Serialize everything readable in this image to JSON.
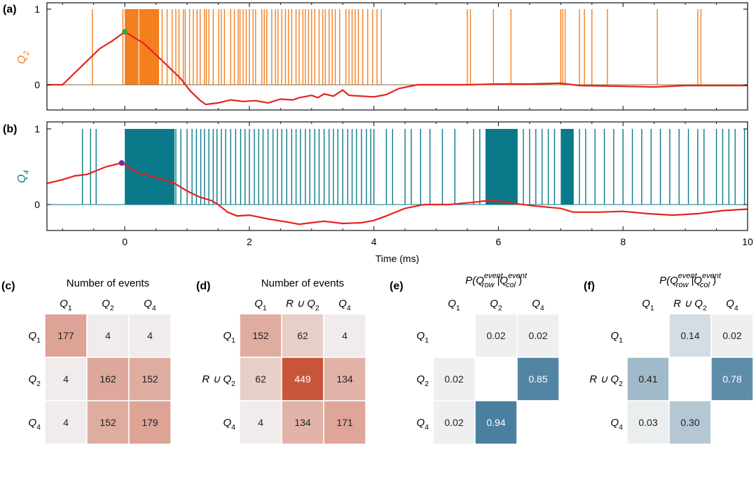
{
  "colors": {
    "q2": "#f47f1f",
    "q4": "#0a7a8a",
    "red": "#e4231f",
    "green": "#3aa33a",
    "purple": "#7a2a96",
    "warm_low": "#f1f1f1",
    "warm_high": "#c9553a",
    "cool_low": "#f3f3f3",
    "cool_high": "#4a7fa0"
  },
  "panel_a": {
    "label": "(a)",
    "ylabel": "Q",
    "ylabel_sub": "2",
    "yticks": [
      "1",
      "0"
    ],
    "ytick_values": [
      1,
      0
    ],
    "marker_point": {
      "t": 0.0,
      "y": 0.7
    },
    "trace": [
      [
        -1.25,
        0
      ],
      [
        -1.0,
        0.0
      ],
      [
        -0.85,
        0.12
      ],
      [
        -0.6,
        0.32
      ],
      [
        -0.4,
        0.48
      ],
      [
        -0.2,
        0.58
      ],
      [
        0.0,
        0.7
      ],
      [
        0.3,
        0.55
      ],
      [
        0.6,
        0.32
      ],
      [
        0.9,
        0.08
      ],
      [
        1.05,
        -0.08
      ],
      [
        1.2,
        -0.2
      ],
      [
        1.3,
        -0.26
      ],
      [
        1.5,
        -0.24
      ],
      [
        1.7,
        -0.2
      ],
      [
        1.9,
        -0.22
      ],
      [
        2.1,
        -0.21
      ],
      [
        2.3,
        -0.24
      ],
      [
        2.5,
        -0.19
      ],
      [
        2.7,
        -0.2
      ],
      [
        2.8,
        -0.17
      ],
      [
        3.0,
        -0.14
      ],
      [
        3.1,
        -0.17
      ],
      [
        3.2,
        -0.12
      ],
      [
        3.35,
        -0.15
      ],
      [
        3.5,
        -0.07
      ],
      [
        3.6,
        -0.14
      ],
      [
        3.8,
        -0.15
      ],
      [
        4.0,
        -0.16
      ],
      [
        4.2,
        -0.13
      ],
      [
        4.4,
        -0.05
      ],
      [
        4.7,
        0.0
      ],
      [
        5.0,
        0.0
      ],
      [
        5.5,
        0.0
      ],
      [
        6.0,
        0.01
      ],
      [
        6.5,
        0.01
      ],
      [
        7.0,
        0.02
      ],
      [
        7.3,
        -0.01
      ],
      [
        8.0,
        -0.02
      ],
      [
        8.5,
        -0.03
      ],
      [
        9.0,
        -0.01
      ],
      [
        9.5,
        -0.01
      ],
      [
        10.0,
        -0.01
      ]
    ],
    "spike_times": [
      -0.52,
      -0.03,
      0.24,
      0.33,
      0.4,
      0.52,
      0.6,
      0.68,
      0.76,
      0.82,
      0.87,
      0.94,
      0.97,
      1.04,
      1.1,
      1.16,
      1.21,
      1.28,
      1.31,
      1.35,
      1.42,
      1.51,
      1.55,
      1.6,
      1.7,
      1.76,
      1.82,
      1.85,
      1.9,
      1.95,
      2.0,
      2.06,
      2.1,
      2.2,
      2.24,
      2.28,
      2.36,
      2.42,
      2.46,
      2.52,
      2.58,
      2.63,
      2.68,
      2.75,
      2.8,
      2.86,
      2.9,
      2.95,
      3.0,
      3.05,
      3.12,
      3.18,
      3.22,
      3.28,
      3.33,
      3.38,
      3.45,
      3.55,
      3.6,
      3.65,
      3.7,
      3.75,
      3.82,
      3.9,
      3.98,
      4.05,
      4.12,
      5.5,
      5.55,
      5.92,
      6.2,
      7.0,
      7.03,
      7.07,
      7.3,
      7.38,
      7.5,
      7.75,
      8.55,
      9.2,
      9.25
    ],
    "dense_ranges": [
      [
        0.0,
        0.22
      ],
      [
        0.24,
        0.55
      ]
    ]
  },
  "panel_b": {
    "label": "(b)",
    "ylabel": "Q",
    "ylabel_sub": "4",
    "yticks": [
      "1",
      "0"
    ],
    "ytick_values": [
      1,
      0
    ],
    "marker_point": {
      "t": -0.05,
      "y": 0.55
    },
    "trace": [
      [
        -1.25,
        0.28
      ],
      [
        -1.0,
        0.33
      ],
      [
        -0.8,
        0.38
      ],
      [
        -0.6,
        0.4
      ],
      [
        -0.45,
        0.45
      ],
      [
        -0.3,
        0.5
      ],
      [
        -0.05,
        0.55
      ],
      [
        0.2,
        0.42
      ],
      [
        0.5,
        0.36
      ],
      [
        0.8,
        0.28
      ],
      [
        1.0,
        0.18
      ],
      [
        1.2,
        0.1
      ],
      [
        1.4,
        0.05
      ],
      [
        1.5,
        0.0
      ],
      [
        1.65,
        -0.1
      ],
      [
        1.8,
        -0.15
      ],
      [
        2.0,
        -0.14
      ],
      [
        2.3,
        -0.19
      ],
      [
        2.6,
        -0.23
      ],
      [
        2.8,
        -0.26
      ],
      [
        3.0,
        -0.24
      ],
      [
        3.2,
        -0.22
      ],
      [
        3.5,
        -0.25
      ],
      [
        3.8,
        -0.24
      ],
      [
        4.0,
        -0.21
      ],
      [
        4.2,
        -0.15
      ],
      [
        4.5,
        -0.05
      ],
      [
        4.8,
        0.0
      ],
      [
        5.2,
        0.0
      ],
      [
        5.6,
        0.03
      ],
      [
        5.9,
        0.06
      ],
      [
        6.2,
        0.02
      ],
      [
        6.6,
        -0.02
      ],
      [
        7.0,
        -0.05
      ],
      [
        7.2,
        -0.1
      ],
      [
        7.6,
        -0.1
      ],
      [
        8.0,
        -0.09
      ],
      [
        8.4,
        -0.12
      ],
      [
        8.8,
        -0.14
      ],
      [
        9.2,
        -0.12
      ],
      [
        9.6,
        -0.08
      ],
      [
        10.0,
        -0.06
      ]
    ],
    "spike_times": [
      -0.68,
      -0.55,
      -0.46,
      0.82,
      0.9,
      1.0,
      1.08,
      1.15,
      1.22,
      1.28,
      1.35,
      1.42,
      1.48,
      1.55,
      1.62,
      1.7,
      1.78,
      1.86,
      1.93,
      2.0,
      2.08,
      2.15,
      2.22,
      2.3,
      2.38,
      2.45,
      2.52,
      2.6,
      2.68,
      2.75,
      2.82,
      2.9,
      2.97,
      3.05,
      3.12,
      3.2,
      3.28,
      3.35,
      3.42,
      3.5,
      3.58,
      3.65,
      3.72,
      3.8,
      3.88,
      3.95,
      4.0,
      4.2,
      4.3,
      4.5,
      4.6,
      4.75,
      4.9,
      5.1,
      5.3,
      5.6,
      5.7,
      5.8,
      5.9,
      6.0,
      6.1,
      6.2,
      6.3,
      6.4,
      6.5,
      6.6,
      6.7,
      6.8,
      6.9,
      7.05,
      7.1,
      7.2,
      7.3,
      7.4,
      7.55,
      7.7,
      7.85,
      8.0,
      8.15,
      8.3,
      8.45,
      8.6,
      8.75,
      8.9,
      9.05,
      9.2,
      9.3,
      9.5,
      9.6,
      9.7,
      9.8,
      9.95
    ],
    "dense_ranges": [
      [
        0.0,
        0.8
      ],
      [
        5.8,
        6.3
      ],
      [
        7.0,
        7.2
      ]
    ]
  },
  "time_axis": {
    "label": "Time (ms)",
    "ticks": [
      0,
      2,
      4,
      6,
      8,
      10
    ],
    "tick_labels": [
      "0",
      "2",
      "4",
      "6",
      "8",
      "10"
    ],
    "xmin": -1.25,
    "xmax": 10
  },
  "matrix_c": {
    "label": "(c)",
    "title": "Number of events",
    "cols": [
      [
        "Q",
        "1",
        ""
      ],
      [
        "Q",
        "2",
        ""
      ],
      [
        "Q",
        "4",
        ""
      ]
    ],
    "rows": [
      [
        "Q",
        "1",
        ""
      ],
      [
        "Q",
        "2",
        ""
      ],
      [
        "Q",
        "4",
        ""
      ]
    ],
    "values": [
      [
        177,
        4,
        4
      ],
      [
        4,
        162,
        152
      ],
      [
        4,
        152,
        179
      ]
    ],
    "text": [
      [
        "177",
        "4",
        "4"
      ],
      [
        "4",
        "162",
        "152"
      ],
      [
        "4",
        "152",
        "179"
      ]
    ],
    "scale": "warm",
    "vmax": 449
  },
  "matrix_d": {
    "label": "(d)",
    "title": "Number of events",
    "cols": [
      [
        "Q",
        "1",
        ""
      ],
      [
        "R ∪ Q",
        "2",
        ""
      ],
      [
        "Q",
        "4",
        ""
      ]
    ],
    "rows": [
      [
        "Q",
        "1",
        ""
      ],
      [
        "R ∪ Q",
        "2",
        ""
      ],
      [
        "Q",
        "4",
        ""
      ]
    ],
    "values": [
      [
        152,
        62,
        4
      ],
      [
        62,
        449,
        134
      ],
      [
        4,
        134,
        171
      ]
    ],
    "text": [
      [
        "152",
        "62",
        "4"
      ],
      [
        "62",
        "449",
        "134"
      ],
      [
        "4",
        "134",
        "171"
      ]
    ],
    "scale": "warm",
    "vmax": 449
  },
  "matrix_e": {
    "label": "(e)",
    "title_parts": [
      "P(Q",
      "event",
      "row",
      "|Q",
      "event",
      "col",
      ")"
    ],
    "cols": [
      [
        "Q",
        "1",
        ""
      ],
      [
        "Q",
        "2",
        ""
      ],
      [
        "Q",
        "4",
        ""
      ]
    ],
    "rows": [
      [
        "Q",
        "1",
        ""
      ],
      [
        "Q",
        "2",
        ""
      ],
      [
        "Q",
        "4",
        ""
      ]
    ],
    "values": [
      [
        null,
        0.02,
        0.02
      ],
      [
        0.02,
        null,
        0.85
      ],
      [
        0.02,
        0.94,
        null
      ]
    ],
    "text": [
      [
        "",
        "0.02",
        "0.02"
      ],
      [
        "0.02",
        "",
        "0.85"
      ],
      [
        "0.02",
        "0.94",
        ""
      ]
    ],
    "scale": "cool",
    "vmax": 1
  },
  "matrix_f": {
    "label": "(f)",
    "title_parts": [
      "P(Q",
      "event",
      "row",
      "|Q",
      "event",
      "col",
      ")"
    ],
    "cols": [
      [
        "Q",
        "1",
        ""
      ],
      [
        "R ∪ Q",
        "2",
        ""
      ],
      [
        "Q",
        "4",
        ""
      ]
    ],
    "rows": [
      [
        "Q",
        "1",
        ""
      ],
      [
        "R ∪ Q",
        "2",
        ""
      ],
      [
        "Q",
        "4",
        ""
      ]
    ],
    "values": [
      [
        null,
        0.14,
        0.02
      ],
      [
        0.41,
        null,
        0.78
      ],
      [
        0.03,
        0.3,
        null
      ]
    ],
    "text": [
      [
        "",
        "0.14",
        "0.02"
      ],
      [
        "0.41",
        "",
        "0.78"
      ],
      [
        "0.03",
        "0.30",
        ""
      ]
    ],
    "scale": "cool",
    "vmax": 1
  },
  "chart_data": [
    {
      "type": "line",
      "title": "(a)",
      "ylabel": "Q2",
      "xlabel": "Time (ms)",
      "xlim": [
        -1.25,
        10
      ],
      "ylim": [
        -0.3,
        1
      ],
      "series": [
        {
          "name": "Q2 events",
          "kind": "spikes"
        },
        {
          "name": "red trace",
          "kind": "line"
        }
      ]
    },
    {
      "type": "line",
      "title": "(b)",
      "ylabel": "Q4",
      "xlabel": "Time (ms)",
      "xlim": [
        -1.25,
        10
      ],
      "ylim": [
        -0.3,
        1
      ],
      "series": [
        {
          "name": "Q4 events",
          "kind": "spikes"
        },
        {
          "name": "red trace",
          "kind": "line"
        }
      ]
    },
    {
      "type": "heatmap",
      "title": "(c) Number of events",
      "rows": [
        "Q1",
        "Q2",
        "Q4"
      ],
      "cols": [
        "Q1",
        "Q2",
        "Q4"
      ],
      "values": [
        [
          177,
          4,
          4
        ],
        [
          4,
          162,
          152
        ],
        [
          4,
          152,
          179
        ]
      ]
    },
    {
      "type": "heatmap",
      "title": "(d) Number of events",
      "rows": [
        "Q1",
        "R ∪ Q2",
        "Q4"
      ],
      "cols": [
        "Q1",
        "R ∪ Q2",
        "Q4"
      ],
      "values": [
        [
          152,
          62,
          4
        ],
        [
          62,
          449,
          134
        ],
        [
          4,
          134,
          171
        ]
      ]
    },
    {
      "type": "heatmap",
      "title": "(e) P(Q_row^event|Q_col^event)",
      "rows": [
        "Q1",
        "Q2",
        "Q4"
      ],
      "cols": [
        "Q1",
        "Q2",
        "Q4"
      ],
      "values": [
        [
          null,
          0.02,
          0.02
        ],
        [
          0.02,
          null,
          0.85
        ],
        [
          0.02,
          0.94,
          null
        ]
      ]
    },
    {
      "type": "heatmap",
      "title": "(f) P(Q_row^event|Q_col^event)",
      "rows": [
        "Q1",
        "R ∪ Q2",
        "Q4"
      ],
      "cols": [
        "Q1",
        "R ∪ Q2",
        "Q4"
      ],
      "values": [
        [
          null,
          0.14,
          0.02
        ],
        [
          0.41,
          null,
          0.78
        ],
        [
          0.03,
          0.3,
          null
        ]
      ]
    }
  ]
}
